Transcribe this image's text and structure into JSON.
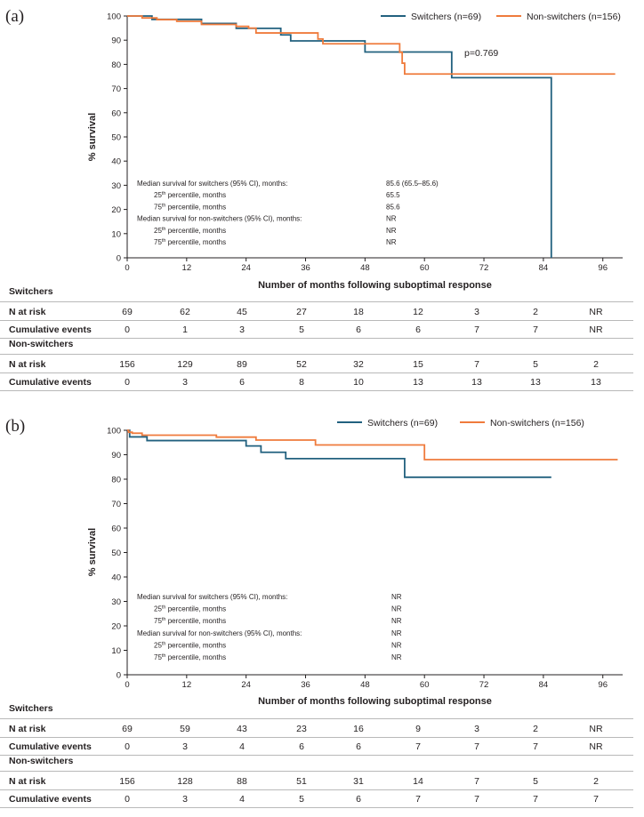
{
  "colors": {
    "switchers": "#22617f",
    "non_switchers": "#ef7b3c"
  },
  "chart_data": [
    {
      "type": "line",
      "panel": "(a)",
      "xlabel": "Number of months following suboptimal response",
      "ylabel": "% survival",
      "xlim": [
        0,
        100
      ],
      "ylim": [
        0,
        100
      ],
      "xticks": [
        0,
        12,
        24,
        36,
        48,
        60,
        72,
        84,
        96
      ],
      "yticks": [
        0,
        10,
        20,
        30,
        40,
        50,
        60,
        70,
        80,
        90,
        100
      ],
      "grid": false,
      "legend_position": "top-right",
      "annotation": "p=0.769",
      "series": [
        {
          "name": "Switchers (n=69)",
          "color": "#22617f",
          "x": [
            0,
            5,
            15,
            22,
            31,
            33,
            39,
            48,
            65.5,
            85.6
          ],
          "y": [
            100,
            98.6,
            96.9,
            94.9,
            92.2,
            89.7,
            89.7,
            85.1,
            74.5,
            0
          ]
        },
        {
          "name": "Non-switchers (n=156)",
          "color": "#ef7b3c",
          "x": [
            0,
            3,
            6,
            10,
            15,
            22,
            24.5,
            26,
            38.5,
            39.5,
            55,
            55.5,
            56,
            98.5
          ],
          "y": [
            100,
            99.2,
            98.5,
            97.8,
            96.5,
            95.7,
            95.0,
            93.0,
            90.5,
            88.5,
            85.0,
            80.5,
            76.0,
            76.0
          ]
        }
      ],
      "median_table": [
        {
          "label": "Median survival for switchers (95% CI), months:",
          "value": "85.6 (65.5–85.6)",
          "indent": false
        },
        {
          "label": "25th percentile, months",
          "value": "65.5",
          "indent": true
        },
        {
          "label": "75th percentile, months",
          "value": "85.6",
          "indent": true
        },
        {
          "label": "Median survival for non-switchers (95% CI), months:",
          "value": "NR",
          "indent": false
        },
        {
          "label": "25th percentile, months",
          "value": "NR",
          "indent": true
        },
        {
          "label": "75th percentile, months",
          "value": "NR",
          "indent": true
        }
      ]
    },
    {
      "type": "line",
      "panel": "(b)",
      "xlabel": "Number of months following suboptimal response",
      "ylabel": "% survival",
      "xlim": [
        0,
        100
      ],
      "ylim": [
        0,
        100
      ],
      "xticks": [
        0,
        12,
        24,
        36,
        48,
        60,
        72,
        84,
        96
      ],
      "yticks": [
        0,
        10,
        20,
        30,
        40,
        50,
        60,
        70,
        80,
        90,
        100
      ],
      "grid": false,
      "legend_position": "top-right",
      "annotation": "",
      "series": [
        {
          "name": "Switchers (n=69)",
          "color": "#22617f",
          "x": [
            0,
            0.5,
            4,
            24,
            27,
            32,
            56,
            85.6
          ],
          "y": [
            100,
            97.3,
            95.8,
            93.6,
            91.0,
            88.4,
            80.8,
            80.8
          ]
        },
        {
          "name": "Non-switchers (n=156)",
          "color": "#ef7b3c",
          "x": [
            0,
            0.3,
            1,
            3,
            18,
            26,
            38,
            60,
            99
          ],
          "y": [
            100,
            99.2,
            98.8,
            98.0,
            97.2,
            96.0,
            94.0,
            88.0,
            88.0
          ]
        }
      ],
      "median_table": [
        {
          "label": "Median survival for switchers (95% CI), months:",
          "value": "NR",
          "indent": false
        },
        {
          "label": "25th percentile, months",
          "value": "NR",
          "indent": true
        },
        {
          "label": "75th percentile, months",
          "value": "NR",
          "indent": true
        },
        {
          "label": "Median survival for non-switchers (95% CI), months:",
          "value": "NR",
          "indent": false
        },
        {
          "label": "25th percentile, months",
          "value": "NR",
          "indent": true
        },
        {
          "label": "75th percentile, months",
          "value": "NR",
          "indent": true
        }
      ]
    }
  ],
  "risk_tables": [
    {
      "groups": [
        {
          "name": "Switchers",
          "rows": [
            {
              "label": "N at risk",
              "values": [
                "69",
                "62",
                "45",
                "27",
                "18",
                "12",
                "3",
                "2",
                "NR"
              ]
            },
            {
              "label": "Cumulative events",
              "values": [
                "0",
                "1",
                "3",
                "5",
                "6",
                "6",
                "7",
                "7",
                "NR"
              ]
            }
          ]
        },
        {
          "name": "Non-switchers",
          "rows": [
            {
              "label": "N at risk",
              "values": [
                "156",
                "129",
                "89",
                "52",
                "32",
                "15",
                "7",
                "5",
                "2"
              ]
            },
            {
              "label": "Cumulative events",
              "values": [
                "0",
                "3",
                "6",
                "8",
                "10",
                "13",
                "13",
                "13",
                "13"
              ]
            }
          ]
        }
      ]
    },
    {
      "groups": [
        {
          "name": "Switchers",
          "rows": [
            {
              "label": "N at risk",
              "values": [
                "69",
                "59",
                "43",
                "23",
                "16",
                "9",
                "3",
                "2",
                "NR"
              ]
            },
            {
              "label": "Cumulative events",
              "values": [
                "0",
                "3",
                "4",
                "6",
                "6",
                "7",
                "7",
                "7",
                "NR"
              ]
            }
          ]
        },
        {
          "name": "Non-switchers",
          "rows": [
            {
              "label": "N at risk",
              "values": [
                "156",
                "128",
                "88",
                "51",
                "31",
                "14",
                "7",
                "5",
                "2"
              ]
            },
            {
              "label": "Cumulative events",
              "values": [
                "0",
                "3",
                "4",
                "5",
                "6",
                "7",
                "7",
                "7",
                "7"
              ]
            }
          ]
        }
      ]
    }
  ]
}
